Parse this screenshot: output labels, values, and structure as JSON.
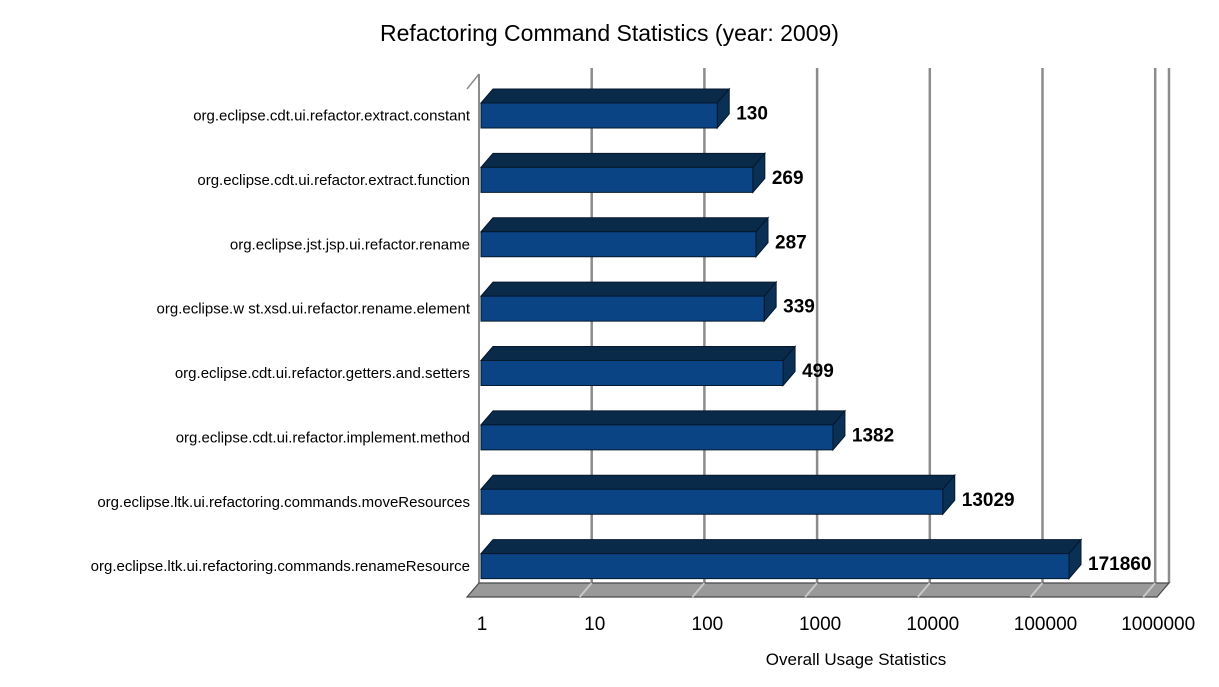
{
  "chart_data": {
    "type": "bar",
    "orientation": "horizontal",
    "title": "Refactoring Command Statistics (year: 2009)",
    "xlabel": "Overall Usage Statistics",
    "ylabel": "",
    "x_scale": "log",
    "xlim": [
      1,
      1000000
    ],
    "grid": true,
    "legend": "none",
    "x_ticks": [
      1,
      10,
      100,
      1000,
      10000,
      100000,
      1000000
    ],
    "x_tick_labels": [
      "1",
      "10",
      "100",
      "1000",
      "10000",
      "100000",
      "1000000"
    ],
    "categories": [
      "org.eclipse.cdt.ui.refactor.extract.constant",
      "org.eclipse.cdt.ui.refactor.extract.function",
      "org.eclipse.jst.jsp.ui.refactor.rename",
      "org.eclipse.w st.xsd.ui.refactor.rename.element",
      "org.eclipse.cdt.ui.refactor.getters.and.setters",
      "org.eclipse.cdt.ui.refactor.implement.method",
      "org.eclipse.ltk.ui.refactoring.commands.moveResources",
      "org.eclipse.ltk.ui.refactoring.commands.renameResource"
    ],
    "values": [
      130,
      269,
      287,
      339,
      499,
      1382,
      13029,
      171860
    ],
    "bar_labels": [
      "130",
      "269",
      "287",
      "339",
      "499",
      "1382",
      "13029",
      "171860"
    ],
    "colors": {
      "background": "#FFFFFF",
      "bar_front": "#0A4484",
      "bar_top": "#0A2A4A",
      "bar_side": "#0B3055",
      "bar_outline": "#04182E",
      "wall": "#FFFFFF",
      "gridline": "#8C8C8C",
      "floor": "#999999",
      "floor_mark": "#C8C8C8",
      "floor_border": "#4A4A4A",
      "text": "#000000"
    }
  }
}
